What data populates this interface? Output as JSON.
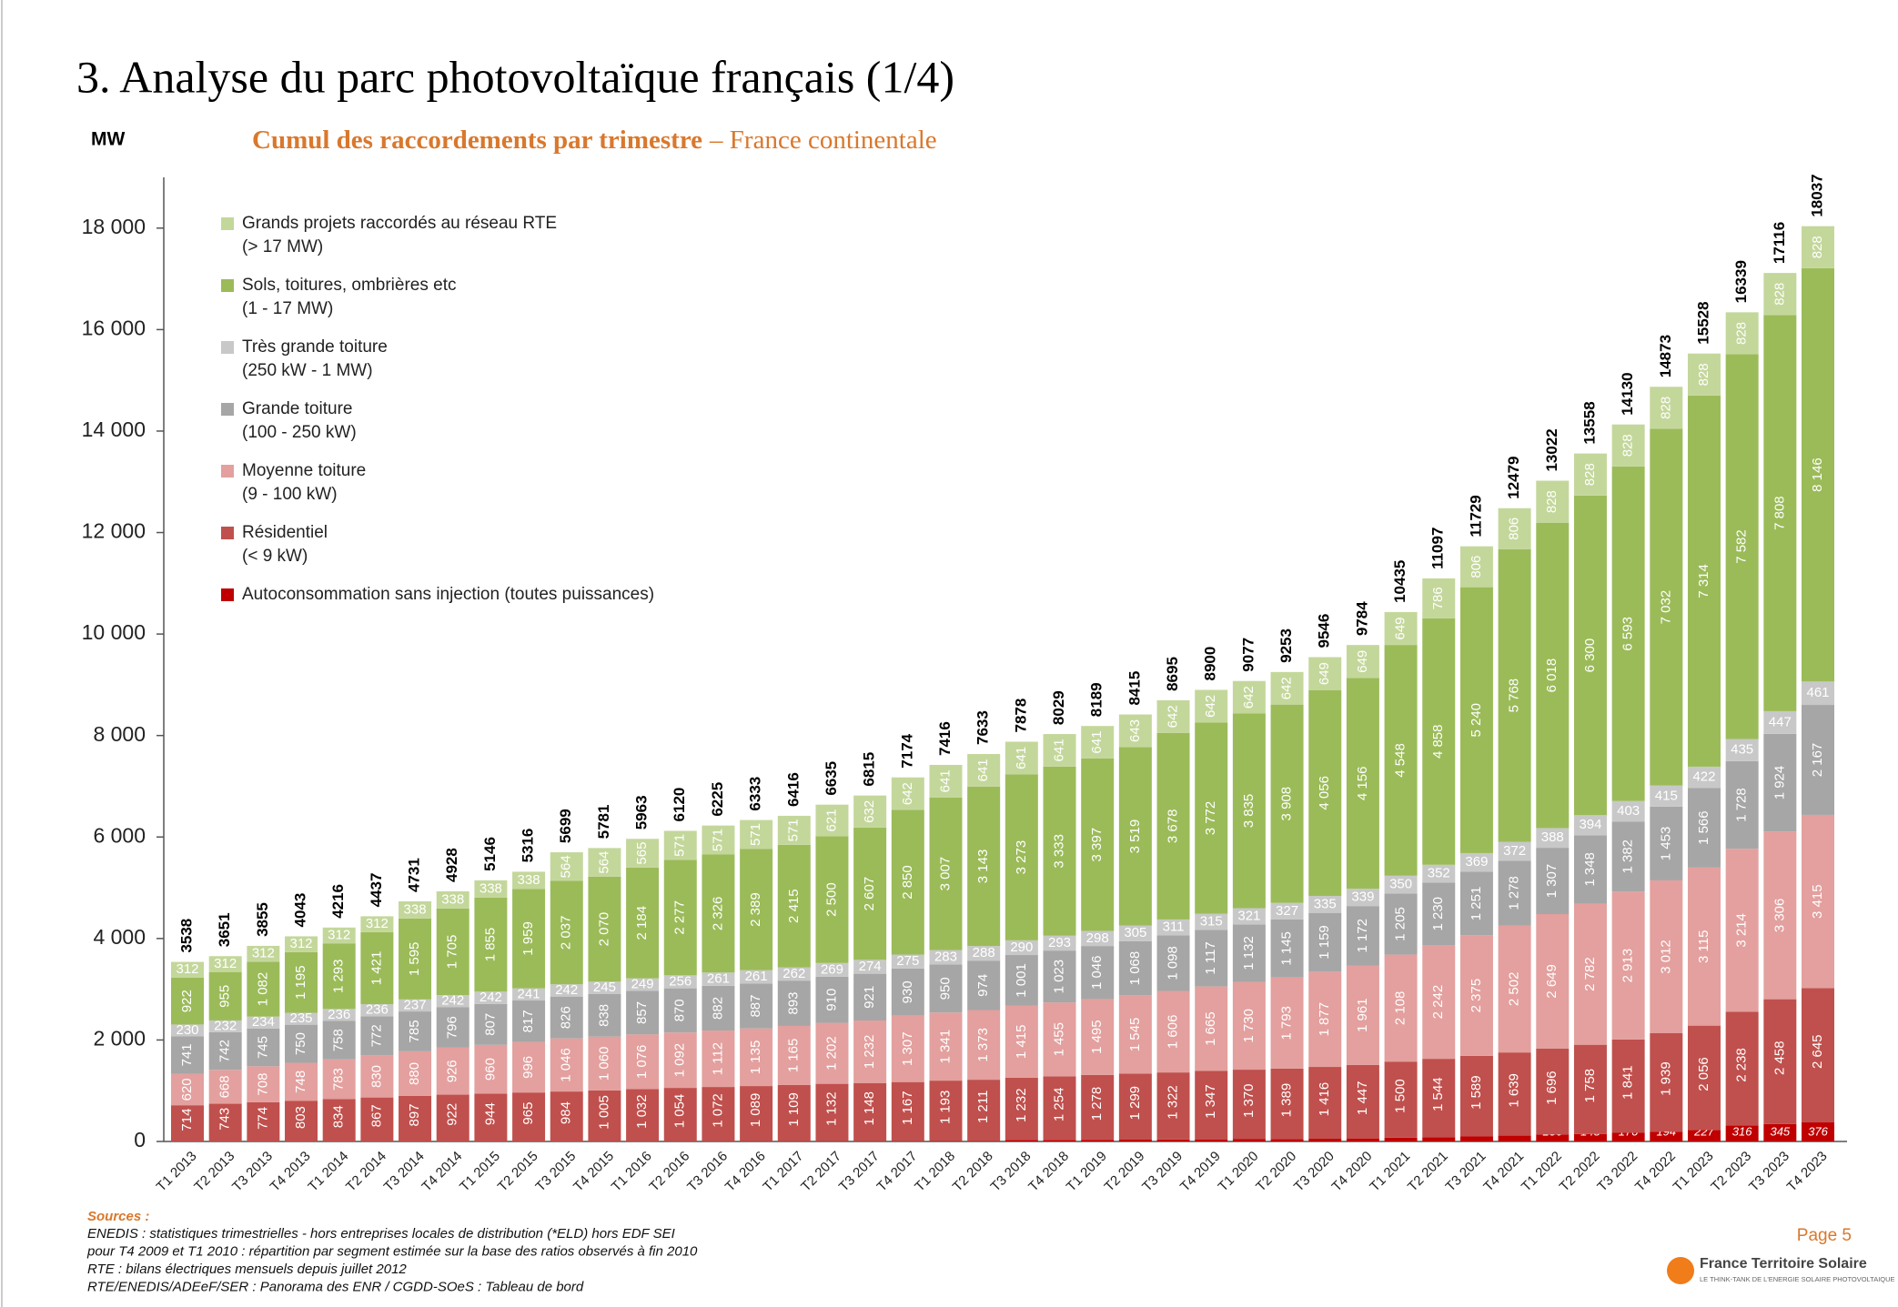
{
  "header": {
    "title": "3. Analyse du parc photovoltaïque français (1/4)"
  },
  "chart_data": {
    "type": "stacked_bar",
    "title": "Cumul des raccordements par trimestre",
    "subtitle": "– France continentale",
    "y_axis_label": "MW",
    "legend": "upper left",
    "categories": [
      "T1 2013",
      "T2 2013",
      "T3 2013",
      "T4 2013",
      "T1 2014",
      "T2 2014",
      "T3 2014",
      "T4 2014",
      "T1 2015",
      "T2 2015",
      "T3 2015",
      "T4 2015",
      "T1 2016",
      "T2 2016",
      "T3 2016",
      "T4 2016",
      "T1 2017",
      "T2 2017",
      "T3 2017",
      "T4 2017",
      "T1 2018",
      "T2 2018",
      "T3 2018",
      "T4 2018",
      "T1 2019",
      "T2 2019",
      "T3 2019",
      "T4 2019",
      "T1 2020",
      "T2 2020",
      "T3 2020",
      "T4 2020",
      "T1 2021",
      "T2 2021",
      "T3 2021",
      "T4 2021",
      "T1 2022",
      "T2 2022",
      "T3 2022",
      "T4 2022",
      "T1 2023",
      "T2 2023",
      "T3 2023",
      "T4 2023"
    ],
    "ylim": [
      0,
      19000
    ],
    "yticks": [
      0,
      {
        "value": 2000,
        "label": "2 000"
      },
      {
        "value": 4000,
        "label": "4 000"
      },
      {
        "value": 6000,
        "label": "6 000"
      },
      {
        "value": 8000,
        "label": "8 000"
      },
      {
        "value": 10000,
        "label": "10 000"
      },
      {
        "value": 12000,
        "label": "12 000"
      },
      {
        "value": 14000,
        "label": "14 000"
      },
      {
        "value": 16000,
        "label": "16 000"
      },
      {
        "value": 18000,
        "label": "18 000"
      }
    ],
    "series": [
      {
        "name": "Autoconsommation sans injection (toutes puissances)",
        "color": "#c00000",
        "values": [
          0,
          0,
          0,
          0,
          0,
          0,
          0,
          0,
          0,
          0,
          0,
          1,
          1,
          2,
          2,
          3,
          3,
          4,
          4,
          4,
          6,
          6,
          26,
          30,
          33,
          36,
          38,
          42,
          45,
          48,
          53,
          60,
          74,
          85,
          99,
          115,
          136,
          148,
          170,
          194,
          227,
          316,
          345,
          376
        ]
      },
      {
        "name": "Résidentiel",
        "detail": "(< 9 kW)",
        "color": "#c0504d",
        "values": [
          714,
          743,
          774,
          803,
          834,
          867,
          897,
          922,
          944,
          965,
          984,
          1005,
          1032,
          1054,
          1072,
          1089,
          1109,
          1132,
          1148,
          1167,
          1193,
          1211,
          1232,
          1254,
          1278,
          1299,
          1322,
          1347,
          1370,
          1389,
          1416,
          1447,
          1500,
          1544,
          1589,
          1639,
          1696,
          1758,
          1841,
          1939,
          2056,
          2238,
          2458,
          2645
        ],
        "value_labels": [
          "714",
          "743",
          "774",
          "803",
          "834",
          "867",
          "897",
          "922",
          "944",
          "965",
          "984",
          "1 005",
          "1 032",
          "1 054",
          "1 072",
          "1 089",
          "1 109",
          "1 132",
          "1 148",
          "1 167",
          "1 193",
          "1 211",
          "1 232",
          "1 254",
          "1 278",
          "1 299",
          "1 322",
          "1 347",
          "1 370",
          "1 389",
          "1 416",
          "1 447",
          "1 500",
          "1 544",
          "1 589",
          "1 639",
          "1 696",
          "1 758",
          "1 841",
          "1 939",
          "2 056",
          "2 238",
          "2 458",
          "2 645"
        ]
      },
      {
        "name": "Moyenne toiture",
        "detail": "(9 - 100 kW)",
        "color": "#e3a09e",
        "values": [
          620,
          668,
          708,
          748,
          783,
          830,
          880,
          926,
          960,
          996,
          1046,
          1060,
          1076,
          1092,
          1112,
          1135,
          1165,
          1202,
          1232,
          1307,
          1341,
          1373,
          1415,
          1455,
          1495,
          1545,
          1606,
          1665,
          1730,
          1793,
          1877,
          1961,
          2108,
          2242,
          2375,
          2502,
          2649,
          2782,
          2913,
          3012,
          3115,
          3214,
          3306,
          3415
        ],
        "value_labels": [
          "620",
          "668",
          "708",
          "748",
          "783",
          "830",
          "880",
          "926",
          "960",
          "996",
          "1 046",
          "1 060",
          "1 076",
          "1 092",
          "1 112",
          "1 135",
          "1 165",
          "1 202",
          "1 232",
          "1 307",
          "1 341",
          "1 373",
          "1 415",
          "1 455",
          "1 495",
          "1 545",
          "1 606",
          "1 665",
          "1 730",
          "1 793",
          "1 877",
          "1 961",
          "2 108",
          "2 242",
          "2 375",
          "2 502",
          "2 649",
          "2 782",
          "2 913",
          "3 012",
          "3 115",
          "3 214",
          "3 306",
          "3 415"
        ]
      },
      {
        "name": "Grande toiture",
        "detail": "(100 - 250 kW)",
        "color": "#a6a6a6",
        "values": [
          741,
          742,
          745,
          750,
          758,
          772,
          785,
          796,
          807,
          817,
          826,
          838,
          857,
          870,
          882,
          887,
          893,
          910,
          921,
          930,
          950,
          974,
          1001,
          1023,
          1046,
          1068,
          1098,
          1117,
          1132,
          1145,
          1159,
          1172,
          1205,
          1230,
          1251,
          1278,
          1307,
          1348,
          1382,
          1453,
          1566,
          1728,
          1924,
          2167
        ],
        "value_labels": [
          "741",
          "742",
          "745",
          "750",
          "758",
          "772",
          "785",
          "796",
          "807",
          "817",
          "826",
          "838",
          "857",
          "870",
          "882",
          "887",
          "893",
          "910",
          "921",
          "930",
          "950",
          "974",
          "1 001",
          "1 023",
          "1 046",
          "1 068",
          "1 098",
          "1 117",
          "1 132",
          "1 145",
          "1 159",
          "1 172",
          "1 205",
          "1 230",
          "1 251",
          "1 278",
          "1 307",
          "1 348",
          "1 382",
          "1 453",
          "1 566",
          "1 728",
          "1 924",
          "2 167"
        ]
      },
      {
        "name": "Très grande toiture",
        "detail": "(250 kW - 1 MW)",
        "color": "#c8c8c8",
        "values": [
          230,
          232,
          234,
          235,
          236,
          236,
          237,
          242,
          242,
          241,
          242,
          245,
          249,
          256,
          261,
          261,
          262,
          269,
          274,
          275,
          283,
          288,
          290,
          293,
          298,
          305,
          311,
          315,
          321,
          327,
          335,
          339,
          350,
          352,
          369,
          372,
          388,
          394,
          403,
          415,
          422,
          435,
          447,
          461
        ]
      },
      {
        "name": "Sols, toitures, ombrières etc",
        "detail": "(1 - 17 MW)",
        "color": "#9bbb59",
        "values": [
          922,
          955,
          1082,
          1195,
          1293,
          1421,
          1595,
          1705,
          1855,
          1959,
          2037,
          2070,
          2184,
          2277,
          2326,
          2389,
          2415,
          2500,
          2607,
          2850,
          3007,
          3143,
          3273,
          3333,
          3397,
          3519,
          3678,
          3772,
          3835,
          3908,
          4056,
          4156,
          4548,
          4858,
          5240,
          5768,
          6018,
          6300,
          6593,
          7032,
          7314,
          7582,
          7808,
          8146
        ],
        "value_labels": [
          "922",
          "955",
          "1 082",
          "1 195",
          "1 293",
          "1 421",
          "1 595",
          "1 705",
          "1 855",
          "1 959",
          "2 037",
          "2 070",
          "2 184",
          "2 277",
          "2 326",
          "2 389",
          "2 415",
          "2 500",
          "2 607",
          "2 850",
          "3 007",
          "3 143",
          "3 273",
          "3 333",
          "3 397",
          "3 519",
          "3 678",
          "3 772",
          "3 835",
          "3 908",
          "4 056",
          "4 156",
          "4 548",
          "4 858",
          "5 240",
          "5 768",
          "6 018",
          "6 300",
          "6 593",
          "7 032",
          "7 314",
          "7 582",
          "7 808",
          "8 146"
        ]
      },
      {
        "name": "Grands projets raccordés au réseau RTE",
        "detail": "(> 17 MW)",
        "color": "#c4d79b",
        "values": [
          312,
          312,
          312,
          312,
          312,
          312,
          338,
          338,
          338,
          338,
          564,
          564,
          565,
          571,
          571,
          571,
          571,
          621,
          632,
          642,
          641,
          641,
          641,
          641,
          641,
          643,
          642,
          642,
          642,
          642,
          649,
          649,
          649,
          786,
          806,
          806,
          828,
          828,
          828,
          828,
          828,
          828,
          828,
          828
        ]
      }
    ],
    "totals": [
      3538,
      3651,
      3855,
      4043,
      4216,
      4437,
      4731,
      4928,
      5146,
      5316,
      5699,
      5781,
      5963,
      6120,
      6225,
      6333,
      6416,
      6635,
      6815,
      7174,
      7416,
      7633,
      7878,
      8029,
      8189,
      8415,
      8695,
      8900,
      9077,
      9253,
      9546,
      9784,
      10435,
      11097,
      11729,
      12479,
      13022,
      13558,
      14130,
      14873,
      15528,
      16339,
      17116,
      18037
    ]
  },
  "footer": {
    "sources_title": "Sources :",
    "sources": [
      "ENEDIS : statistiques trimestrielles - hors entreprises locales de distribution (*ELD) hors EDF SEI",
      "pour T4 2009 et T1 2010 : répartition par segment estimée sur la base des ratios observés à fin 2010",
      "RTE : bilans électriques mensuels depuis juillet 2012",
      "RTE/ENEDIS/ADEeF/SER : Panorama des ENR /  CGDD-SOeS : Tableau de bord"
    ],
    "page": "Page 5",
    "logo_name": "France Territoire Solaire",
    "logo_tagline": "LE THINK-TANK DE L'ENERGIE SOLAIRE PHOTOVOLTAIQUE"
  }
}
